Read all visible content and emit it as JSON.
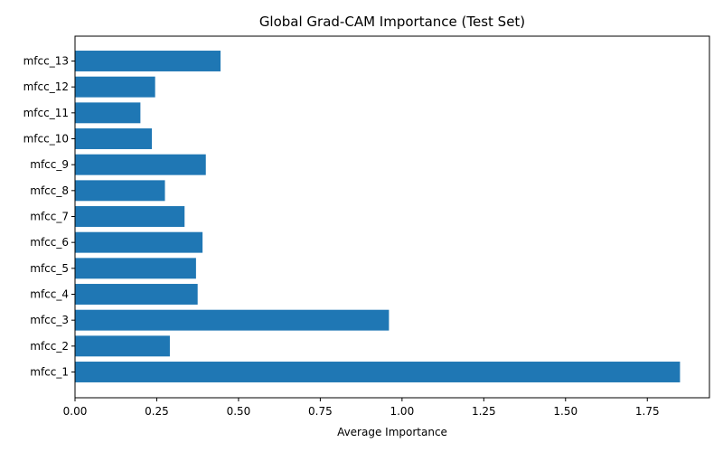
{
  "chart_data": {
    "type": "bar",
    "orientation": "horizontal",
    "title": "Global Grad-CAM Importance (Test Set)",
    "xlabel": "Average Importance",
    "ylabel": "",
    "categories": [
      "mfcc_1",
      "mfcc_2",
      "mfcc_3",
      "mfcc_4",
      "mfcc_5",
      "mfcc_6",
      "mfcc_7",
      "mfcc_8",
      "mfcc_9",
      "mfcc_10",
      "mfcc_11",
      "mfcc_12",
      "mfcc_13"
    ],
    "values": [
      1.85,
      0.29,
      0.96,
      0.375,
      0.37,
      0.39,
      0.335,
      0.275,
      0.4,
      0.235,
      0.2,
      0.245,
      0.445
    ],
    "xlim": [
      0,
      1.94
    ],
    "xticks": [
      0,
      0.25,
      0.5,
      0.75,
      1.0,
      1.25,
      1.5,
      1.75
    ],
    "xtick_labels": [
      "0.00",
      "0.25",
      "0.50",
      "0.75",
      "1.00",
      "1.25",
      "1.50",
      "1.75"
    ],
    "bar_color": "#1f77b4",
    "grid": false,
    "legend": "none"
  }
}
